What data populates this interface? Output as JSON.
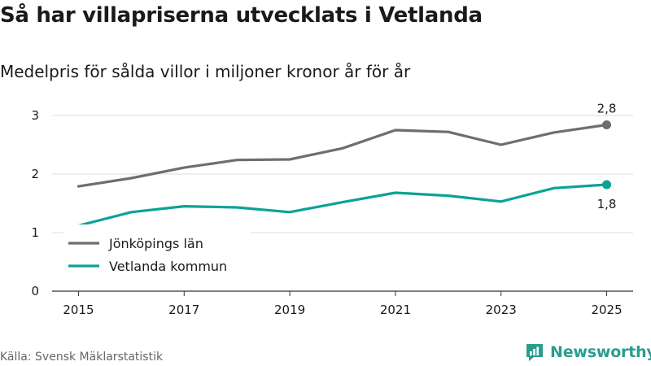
{
  "header": {
    "title": "Så har villapriserna utvecklats i Vetlanda",
    "subtitle": "Medelpris för sålda villor i miljoner kronor år för år"
  },
  "footer": {
    "source": "Källa: Svensk Mäklarstatistik",
    "brand": "Newsworthy"
  },
  "colors": {
    "jonkoping": "#6e6d73",
    "vetlanda": "#0aa396",
    "grid": "#dddddd",
    "axis": "#333333",
    "brand": "#2a9d8f"
  },
  "chart_data": {
    "type": "line",
    "title": "Så har villapriserna utvecklats i Vetlanda",
    "subtitle": "Medelpris för sålda villor i miljoner kronor år för år",
    "xlabel": "",
    "ylabel": "",
    "x": [
      2015,
      2016,
      2017,
      2018,
      2019,
      2020,
      2021,
      2022,
      2023,
      2024,
      2025
    ],
    "x_tick_labels": [
      "2015",
      "2017",
      "2019",
      "2021",
      "2023",
      "2025"
    ],
    "x_ticks": [
      2015,
      2017,
      2019,
      2021,
      2023,
      2025
    ],
    "y_ticks": [
      0,
      1,
      2,
      3
    ],
    "y_tick_labels": [
      "0",
      "1",
      "2",
      "3"
    ],
    "xlim": [
      2014.5,
      2025.5
    ],
    "ylim": [
      0,
      3.25
    ],
    "grid": true,
    "legend_position": "lower-left",
    "series": [
      {
        "name": "Jönköpings län",
        "color_key": "jonkoping",
        "values": [
          1.79,
          1.93,
          2.11,
          2.24,
          2.25,
          2.44,
          2.75,
          2.72,
          2.5,
          2.71,
          2.84
        ],
        "end_label": "2,8",
        "end_label_position": "above"
      },
      {
        "name": "Vetlanda kommun",
        "color_key": "vetlanda",
        "values": [
          1.12,
          1.35,
          1.45,
          1.43,
          1.35,
          1.52,
          1.68,
          1.63,
          1.53,
          1.76,
          1.82
        ],
        "end_label": "1,8",
        "end_label_position": "below"
      }
    ]
  }
}
